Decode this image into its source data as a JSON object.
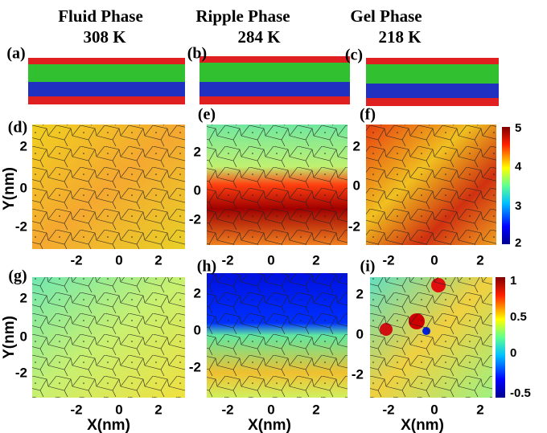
{
  "columns": [
    {
      "phase": "Fluid Phase",
      "temperature": "308 K"
    },
    {
      "phase": "Ripple Phase",
      "temperature": "284 K"
    },
    {
      "phase": "Gel Phase",
      "temperature": "218 K"
    }
  ],
  "panel_labels": [
    "(a)",
    "(b)",
    "(c)",
    "(d)",
    "(e)",
    "(f)",
    "(g)",
    "(h)",
    "(i)"
  ],
  "y_axis_label": "Y(nm)",
  "x_axis_label": "X(nm)",
  "ticks": [
    -2,
    0,
    2
  ],
  "colorbar_top": {
    "ticks": [
      5,
      4,
      3,
      2
    ]
  },
  "colorbar_bottom": {
    "ticks": [
      1,
      0.5,
      0,
      -0.5
    ]
  }
}
